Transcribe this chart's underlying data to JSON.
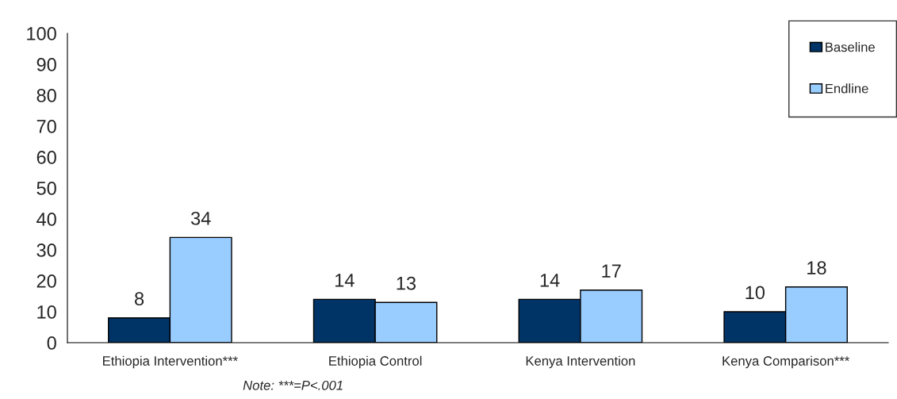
{
  "chart_data": {
    "type": "bar",
    "categories": [
      "Ethiopia Intervention***",
      "Ethiopia Control",
      "Kenya Intervention",
      "Kenya Comparison***"
    ],
    "series": [
      {
        "name": "Baseline",
        "color": "#003366",
        "values": [
          8,
          14,
          14,
          10
        ]
      },
      {
        "name": "Endline",
        "color": "#99ccff",
        "values": [
          34,
          13,
          17,
          18
        ]
      }
    ],
    "ylim": [
      0,
      100
    ],
    "yticks": [
      0,
      10,
      20,
      30,
      40,
      50,
      60,
      70,
      80,
      90,
      100
    ],
    "data_labels": true,
    "legend": "top right",
    "grid": false,
    "annotations": [
      "Note: ***=P<.001"
    ]
  }
}
